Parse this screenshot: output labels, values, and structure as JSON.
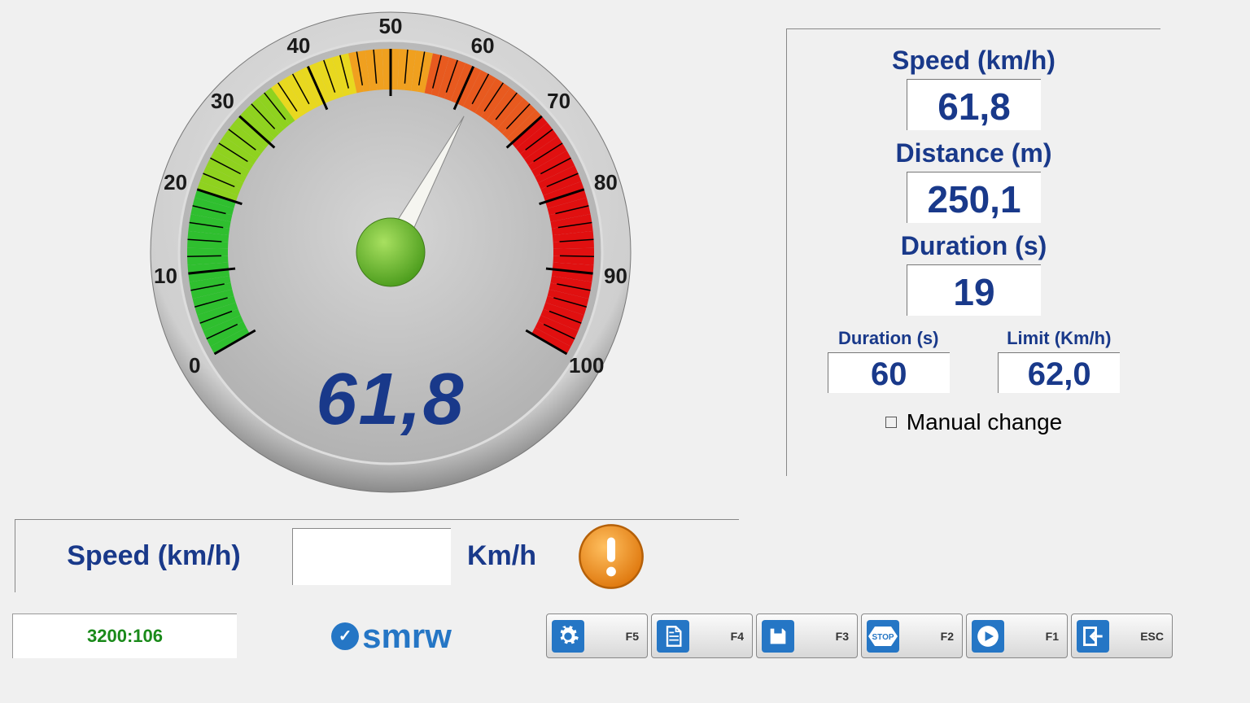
{
  "gauge": {
    "type": "radial-gauge",
    "min": 0,
    "max": 100,
    "value": 61.8,
    "display_value": "61,8",
    "start_angle_deg": -210,
    "end_angle_deg": 30,
    "major_ticks": [
      0,
      10,
      20,
      30,
      40,
      50,
      60,
      70,
      80,
      90,
      100
    ],
    "minor_per_major": 5,
    "tick_label_fontsize": 26,
    "tick_label_color": "#1a1a1a",
    "arc_colors": [
      {
        "from": 0,
        "to": 20,
        "color": "#2fbf2f"
      },
      {
        "from": 20,
        "to": 35,
        "color": "#8fd21f"
      },
      {
        "from": 35,
        "to": 45,
        "color": "#e8d81f"
      },
      {
        "from": 45,
        "to": 55,
        "color": "#f0a01f"
      },
      {
        "from": 55,
        "to": 70,
        "color": "#e85a1f"
      },
      {
        "from": 70,
        "to": 100,
        "color": "#e01010"
      }
    ],
    "arc_width": 50,
    "face_color": "#bfbfbf",
    "rim_outer": "#9c9c9c",
    "rim_inner": "#e6e6e6",
    "needle_color": "#f5f5f0",
    "needle_stroke": "#888",
    "hub_color": "#6fbf2f",
    "digital_color": "#19398a",
    "digital_fontsize": 90
  },
  "readouts": {
    "speed_label": "Speed (km/h)",
    "speed_value": "61,8",
    "distance_label": "Distance (m)",
    "distance_value": "250,1",
    "duration_label": "Duration (s)",
    "duration_value": "19",
    "set_duration_label": "Duration (s)",
    "set_duration_value": "60",
    "limit_label": "Limit (Km/h)",
    "limit_value": "62,0",
    "manual_label": "Manual change",
    "manual_checked": false
  },
  "speed_input": {
    "label": "Speed (km/h)",
    "value": "",
    "unit": "Km/h"
  },
  "footer": {
    "status": "3200:106",
    "logo": "smrw",
    "keys": [
      {
        "key": "F5",
        "icon": "gear"
      },
      {
        "key": "F4",
        "icon": "document"
      },
      {
        "key": "F3",
        "icon": "diskette"
      },
      {
        "key": "F2",
        "icon": "stop"
      },
      {
        "key": "F1",
        "icon": "play"
      },
      {
        "key": "ESC",
        "icon": "exit"
      }
    ]
  },
  "colors": {
    "brand": "#19398a",
    "accent": "#2576c5",
    "bg": "#f0f0f0",
    "status_text": "#1a8a1a",
    "warn_fill": "#f08a1f",
    "warn_rim": "#c46a10"
  }
}
